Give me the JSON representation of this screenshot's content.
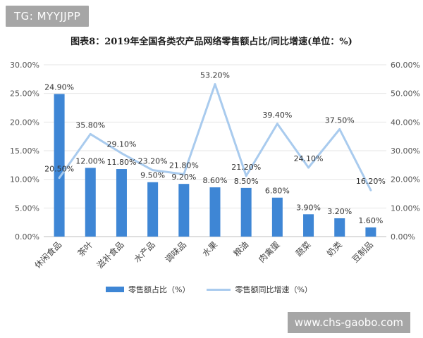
{
  "header": {
    "tag": "TG: MYYJJPP",
    "title": "图表8：2019年全国各类农产品网络零售额占比/同比增速(单位：%)"
  },
  "footer": {
    "watermark": "www.chs-gaobo.com"
  },
  "colors": {
    "bar": "#3e86d5",
    "line": "#a9cbee",
    "axis_text": "#555555",
    "grid": "#e6e6e6"
  },
  "chart_data": {
    "type": "bar",
    "categories": [
      "休闲食品",
      "茶叶",
      "滋补食品",
      "水产品",
      "调味品",
      "水果",
      "粮油",
      "肉禽蛋",
      "蔬菜",
      "奶类",
      "豆制品"
    ],
    "series": [
      {
        "name": "零售额占比（%）",
        "type": "bar",
        "axis": "left",
        "values": [
          24.9,
          12.0,
          11.8,
          9.5,
          9.2,
          8.6,
          8.5,
          6.8,
          3.9,
          3.2,
          1.6
        ],
        "labels": [
          "24.90%",
          "12.00%",
          "11.80%",
          "9.50%",
          "9.20%",
          "8.60%",
          "8.50%",
          "6.80%",
          "3.90%",
          "3.20%",
          "1.60%"
        ]
      },
      {
        "name": "零售额同比增速（%）",
        "type": "line",
        "axis": "right",
        "values": [
          20.5,
          35.8,
          29.1,
          23.2,
          21.8,
          53.2,
          21.2,
          39.4,
          24.1,
          37.5,
          16.2
        ],
        "labels": [
          "20.50%",
          "35.80%",
          "29.10%",
          "23.20%",
          "21.80%",
          "53.20%",
          "21.20%",
          "39.40%",
          "24.10%",
          "37.50%",
          "16.20%"
        ]
      }
    ],
    "y_left": {
      "range": [
        0,
        30
      ],
      "ticks": [
        "0.00%",
        "5.00%",
        "10.00%",
        "15.00%",
        "20.00%",
        "25.00%",
        "30.00%"
      ]
    },
    "y_right": {
      "range": [
        0,
        60
      ],
      "ticks": [
        "0.00%",
        "10.00%",
        "20.00%",
        "30.00%",
        "40.00%",
        "50.00%",
        "60.00%"
      ]
    },
    "grid": true,
    "legend": "bottom"
  }
}
